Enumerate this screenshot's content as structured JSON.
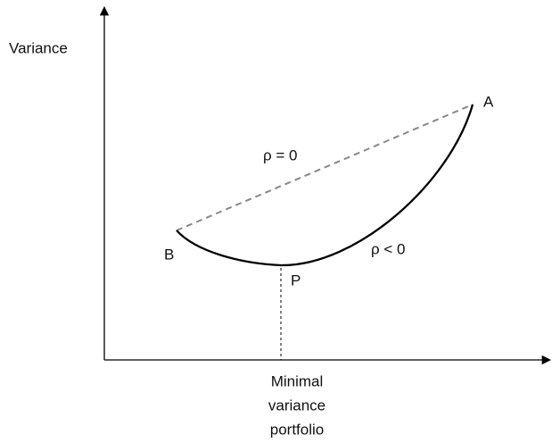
{
  "axes": {
    "y_label": "Variance"
  },
  "points": [
    {
      "label": "A"
    },
    {
      "label": "B"
    },
    {
      "label": "P"
    }
  ],
  "curves": [
    {
      "label": "ρ = 0"
    },
    {
      "label": "ρ < 0"
    }
  ],
  "x_label": [
    "Minimal",
    "variance",
    "portfolio"
  ]
}
